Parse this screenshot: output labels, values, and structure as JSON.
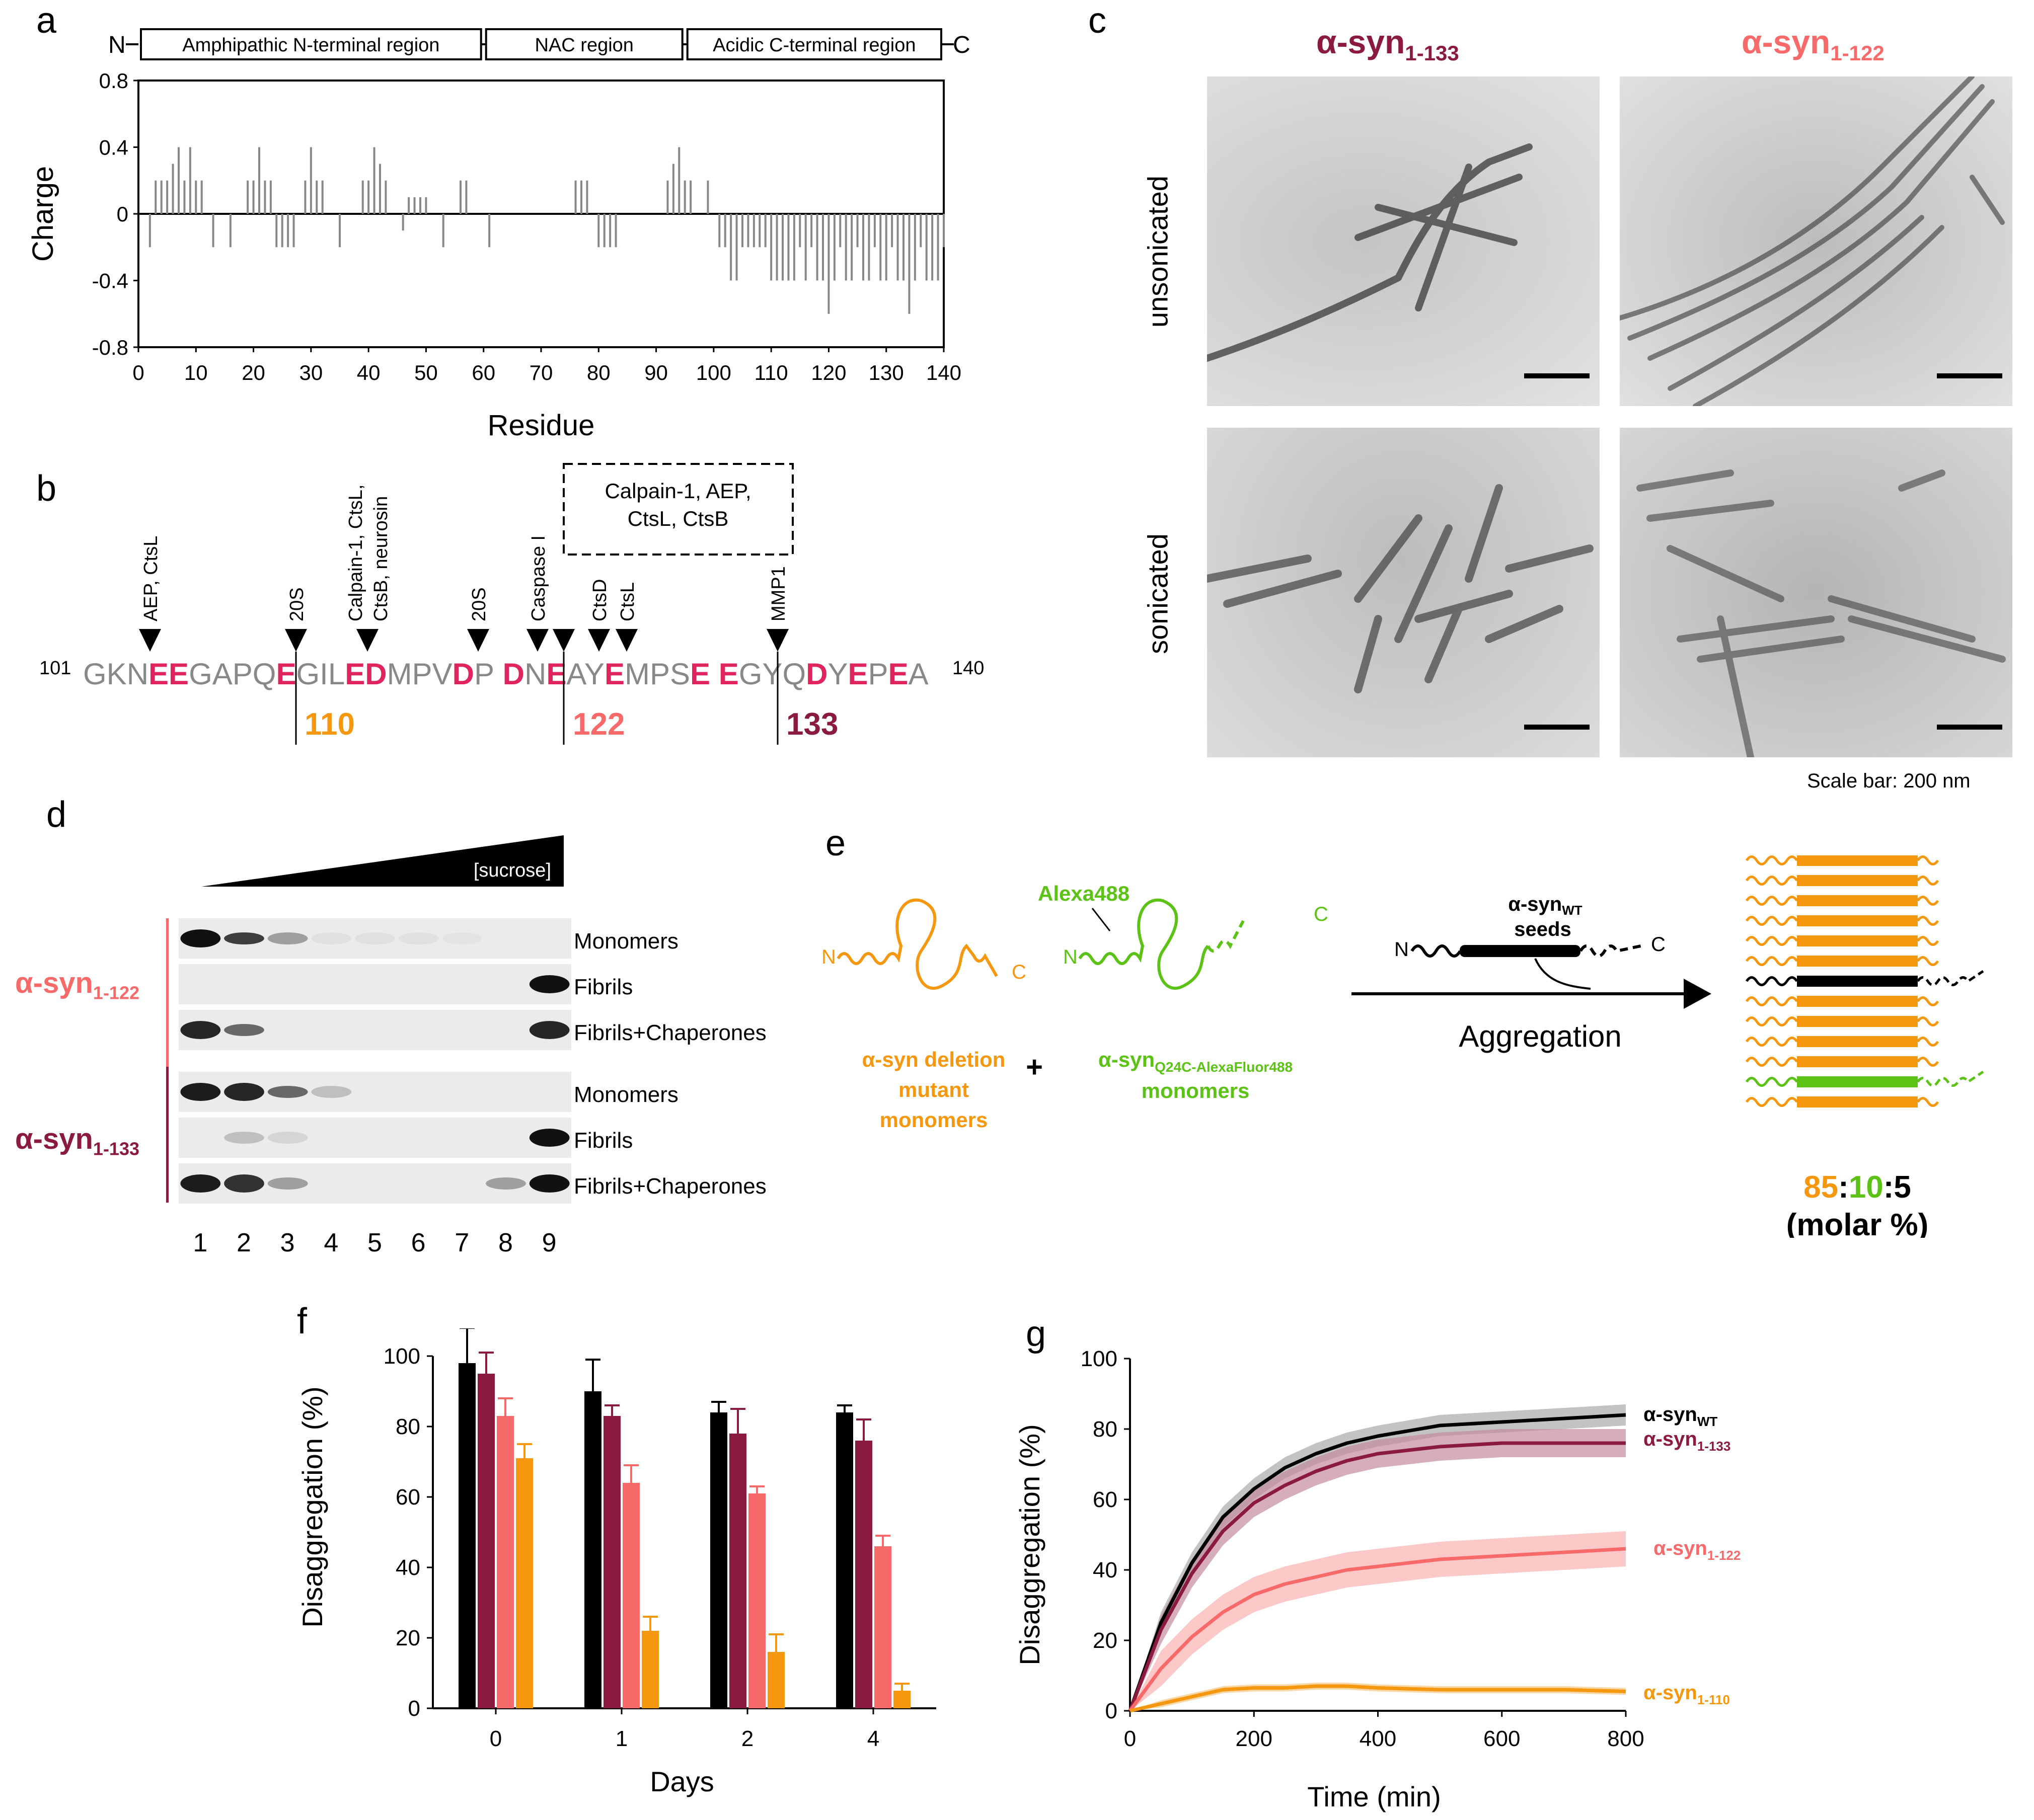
{
  "panels": {
    "a": "a",
    "b": "b",
    "c": "c",
    "d": "d",
    "e": "e",
    "f": "f",
    "g": "g"
  },
  "colors": {
    "c133": "#8b1a3f",
    "c122": "#f86a6a",
    "c110": "#f5980f",
    "wt": "#000000",
    "green": "#5cc215",
    "highlight": "#e0245e",
    "gray": "#888888"
  },
  "panel_a": {
    "domains": [
      {
        "label": "Amphipathic N-terminal region",
        "start": 1,
        "end": 60
      },
      {
        "label": "NAC region",
        "start": 61,
        "end": 95
      },
      {
        "label": "Acidic C-terminal region",
        "start": 96,
        "end": 140
      }
    ],
    "n_term": "N",
    "c_term": "C",
    "ylabel": "Charge",
    "xlabel": "Residue",
    "yticks": [
      "0.8",
      "0.4",
      "0",
      "-0.4",
      "-0.8"
    ],
    "xticks": [
      "0",
      "10",
      "20",
      "30",
      "40",
      "50",
      "60",
      "70",
      "80",
      "90",
      "100",
      "110",
      "120",
      "130",
      "140"
    ],
    "chart_data": {
      "type": "bar",
      "title": "",
      "xlabel": "Residue",
      "ylabel": "Charge",
      "xlim": [
        0,
        140
      ],
      "ylim": [
        -0.8,
        0.8
      ],
      "x": [
        2,
        3,
        4,
        5,
        6,
        7,
        8,
        9,
        10,
        11,
        13,
        16,
        19,
        20,
        21,
        22,
        23,
        24,
        25,
        26,
        27,
        29,
        30,
        31,
        32,
        35,
        39,
        40,
        41,
        42,
        43,
        46,
        47,
        48,
        49,
        50,
        53,
        56,
        57,
        61,
        76,
        77,
        78,
        80,
        81,
        82,
        83,
        92,
        93,
        94,
        95,
        96,
        99,
        101,
        102,
        103,
        104,
        105,
        106,
        107,
        108,
        109,
        110,
        111,
        112,
        113,
        114,
        115,
        116,
        117,
        118,
        119,
        120,
        121,
        122,
        123,
        124,
        125,
        126,
        127,
        128,
        129,
        130,
        131,
        132,
        133,
        134,
        135,
        136,
        137,
        138,
        139,
        140
      ],
      "values": [
        -0.2,
        0.2,
        0.2,
        0.2,
        0.3,
        0.4,
        0.2,
        0.4,
        0.2,
        0.2,
        -0.2,
        -0.2,
        0.2,
        0.2,
        0.4,
        0.2,
        0.2,
        -0.2,
        -0.2,
        -0.2,
        -0.2,
        0.2,
        0.4,
        0.2,
        0.2,
        -0.2,
        0.2,
        0.2,
        0.4,
        0.3,
        0.2,
        -0.1,
        0.1,
        0.1,
        0.1,
        0.1,
        -0.2,
        0.2,
        0.2,
        -0.2,
        0.2,
        0.2,
        0.2,
        -0.2,
        -0.2,
        -0.2,
        -0.2,
        0.2,
        0.3,
        0.4,
        0.2,
        0.2,
        0.2,
        -0.2,
        -0.2,
        -0.4,
        -0.4,
        -0.2,
        -0.2,
        -0.2,
        -0.2,
        -0.2,
        -0.4,
        -0.4,
        -0.4,
        -0.4,
        -0.4,
        -0.2,
        -0.4,
        -0.2,
        -0.4,
        -0.4,
        -0.6,
        -0.4,
        -0.2,
        -0.4,
        -0.4,
        -0.2,
        -0.4,
        -0.4,
        -0.2,
        -0.4,
        -0.4,
        -0.2,
        -0.4,
        -0.4,
        -0.6,
        -0.4,
        -0.2,
        -0.4,
        -0.4,
        -0.4,
        -0.2
      ]
    }
  },
  "panel_b": {
    "start": "101",
    "end": "140",
    "sequence": [
      {
        "t": "GKN",
        "h": false
      },
      {
        "t": "EE",
        "h": true
      },
      {
        "t": "GAPQ",
        "h": false
      },
      {
        "t": "E",
        "h": true
      },
      {
        "t": "GIL",
        "h": false
      },
      {
        "t": "ED",
        "h": true
      },
      {
        "t": "MPV",
        "h": false
      },
      {
        "t": "D",
        "h": true
      },
      {
        "t": "P",
        "h": false
      },
      {
        "t": " D",
        "h": true
      },
      {
        "t": "N",
        "h": false
      },
      {
        "t": "E",
        "h": true
      },
      {
        "t": "AY",
        "h": false
      },
      {
        "t": "E",
        "h": true
      },
      {
        "t": "MPS",
        "h": false
      },
      {
        "t": "E",
        "h": true
      },
      {
        "t": " ",
        "h": false
      },
      {
        "t": "E",
        "h": true
      },
      {
        "t": "GYQ",
        "h": false
      },
      {
        "t": "D",
        "h": true
      },
      {
        "t": "Y",
        "h": false
      },
      {
        "t": "E",
        "h": true
      },
      {
        "t": "P",
        "h": false
      },
      {
        "t": "E",
        "h": true
      },
      {
        "t": "A",
        "h": false
      }
    ],
    "proteases": [
      {
        "lines": [
          "AEP, CtsL"
        ]
      },
      {
        "lines": [
          "20S"
        ]
      },
      {
        "lines": [
          "Calpain-1, CtsL,",
          "CtsB, neurosin"
        ]
      },
      {
        "lines": [
          "20S"
        ]
      },
      {
        "lines": [
          "Caspase I"
        ]
      },
      {
        "lines": [
          ""
        ]
      },
      {
        "lines": [
          "CtsD"
        ]
      },
      {
        "lines": [
          "CtsL"
        ]
      },
      {
        "lines": [
          "MMP1"
        ]
      }
    ],
    "box_lines": [
      "Calpain-1, AEP,",
      "CtsL, CtsB"
    ],
    "cuts": [
      "110",
      "122",
      "133"
    ]
  },
  "panel_c": {
    "col1": {
      "main": "α-syn",
      "sub": "1-133"
    },
    "col2": {
      "main": "α-syn",
      "sub": "1-122"
    },
    "row1": "unsonicated",
    "row2": "sonicated",
    "scale": "Scale bar: 200 nm"
  },
  "panel_d": {
    "gradient": "[sucrose]",
    "group1": {
      "main": "α-syn",
      "sub": "1-122"
    },
    "group2": {
      "main": "α-syn",
      "sub": "1-133"
    },
    "rows": [
      "Monomers",
      "Fibrils",
      "Fibrils+Chaperones"
    ],
    "lanes": [
      "1",
      "2",
      "3",
      "4",
      "5",
      "6",
      "7",
      "8",
      "9"
    ]
  },
  "panel_e": {
    "alexa": "Alexa488",
    "n": "N",
    "c": "C",
    "plus": "+",
    "mutant_lines": [
      "α-syn deletion",
      "mutant",
      "monomers"
    ],
    "q24c_main": "α-syn",
    "q24c_sub": "Q24C-AlexaFluor488",
    "q24c_line2": "monomers",
    "seeds_main": "α-syn",
    "seeds_sub": "WT",
    "seeds_line2": "seeds",
    "aggregation": "Aggregation",
    "ratio_a": "85",
    "ratio_b": "10",
    "ratio_c": "5",
    "colon": ":",
    "molar": "(molar %)"
  },
  "panel_f": {
    "ylabel": "Disaggregation (%)",
    "xlabel": "Days",
    "yticks": [
      "0",
      "20",
      "40",
      "60",
      "80",
      "100"
    ],
    "chart_data": {
      "type": "bar",
      "title": "",
      "xlabel": "Days",
      "ylabel": "Disaggregation (%)",
      "ylim": [
        0,
        100
      ],
      "categories": [
        "0",
        "1",
        "2",
        "4"
      ],
      "series": [
        {
          "name": "α-syn WT",
          "values": [
            98,
            90,
            84,
            84
          ],
          "errors": [
            10,
            9,
            3,
            2
          ]
        },
        {
          "name": "α-syn 1-133",
          "values": [
            95,
            83,
            78,
            76
          ],
          "errors": [
            6,
            3,
            7,
            6
          ]
        },
        {
          "name": "α-syn 1-122",
          "values": [
            83,
            64,
            61,
            46
          ],
          "errors": [
            5,
            5,
            2,
            3
          ]
        },
        {
          "name": "α-syn 1-110",
          "values": [
            71,
            22,
            16,
            5
          ],
          "errors": [
            4,
            4,
            5,
            2
          ]
        }
      ]
    }
  },
  "panel_g": {
    "ylabel": "Disaggregation (%)",
    "xlabel": "Time (min)",
    "yticks": [
      "0",
      "20",
      "40",
      "60",
      "80",
      "100"
    ],
    "xticks": [
      "0",
      "200",
      "400",
      "600",
      "800"
    ],
    "legend": [
      {
        "main": "α-syn",
        "sub": "WT"
      },
      {
        "main": "α-syn",
        "sub": "1-133"
      },
      {
        "main": "α-syn",
        "sub": "1-122"
      },
      {
        "main": "α-syn",
        "sub": "1-110"
      }
    ],
    "chart_data": {
      "type": "line",
      "title": "",
      "xlabel": "Time (min)",
      "ylabel": "Disaggregation (%)",
      "xlim": [
        0,
        800
      ],
      "ylim": [
        0,
        100
      ],
      "x": [
        0,
        50,
        100,
        150,
        200,
        250,
        300,
        350,
        400,
        500,
        600,
        700,
        800
      ],
      "series": [
        {
          "name": "α-syn WT",
          "values": [
            0,
            25,
            42,
            55,
            63,
            69,
            73,
            76,
            78,
            81,
            82,
            83,
            84
          ],
          "error": 3
        },
        {
          "name": "α-syn 1-133",
          "values": [
            0,
            23,
            39,
            51,
            59,
            64,
            68,
            71,
            73,
            75,
            76,
            76,
            76
          ],
          "error": 4
        },
        {
          "name": "α-syn 1-122",
          "values": [
            0,
            12,
            21,
            28,
            33,
            36,
            38,
            40,
            41,
            43,
            44,
            45,
            46
          ],
          "error": 5
        },
        {
          "name": "α-syn 1-110",
          "values": [
            0,
            2,
            4,
            6,
            6.5,
            6.5,
            7,
            7,
            6.5,
            6,
            6,
            6,
            5.5
          ],
          "error": 1
        }
      ]
    }
  }
}
